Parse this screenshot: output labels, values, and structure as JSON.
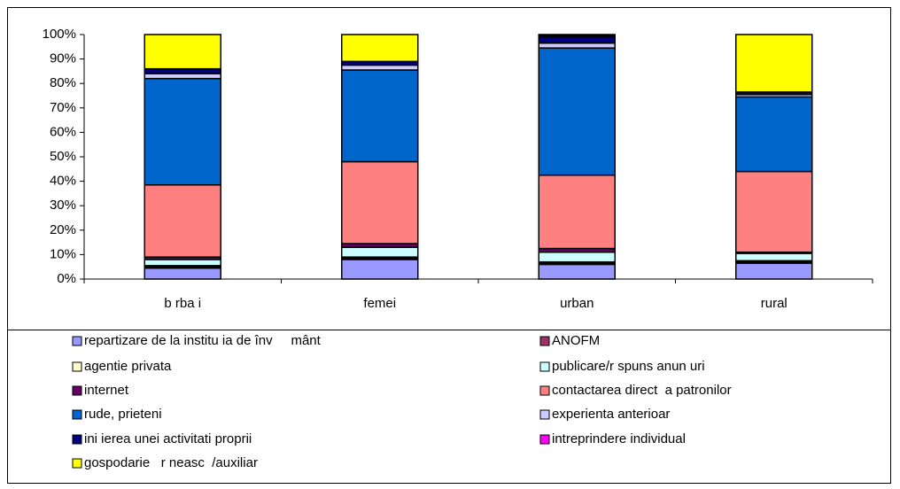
{
  "chart_data": {
    "type": "stacked_bar",
    "categories": [
      "b rba i",
      "femei",
      "urban",
      "rural"
    ],
    "ylim": [
      0,
      100
    ],
    "yticks": [
      {
        "value": 0,
        "label": "0%"
      },
      {
        "value": 10,
        "label": "10%"
      },
      {
        "value": 20,
        "label": "20%"
      },
      {
        "value": 30,
        "label": "30%"
      },
      {
        "value": 40,
        "label": "40%"
      },
      {
        "value": 50,
        "label": "50%"
      },
      {
        "value": 60,
        "label": "60%"
      },
      {
        "value": 70,
        "label": "70%"
      },
      {
        "value": 80,
        "label": "80%"
      },
      {
        "value": 90,
        "label": "90%"
      },
      {
        "value": 100,
        "label": "100%"
      }
    ],
    "series": [
      {
        "name": "repartizare de la institu ia de înv     mânt",
        "color": "#9999ff",
        "values": [
          4.5,
          8,
          6,
          6.5
        ]
      },
      {
        "name": "ANOFM",
        "color": "#993366",
        "values": [
          0.5,
          0.5,
          0.5,
          0.5
        ]
      },
      {
        "name": "agentie privata",
        "color": "#ffffcc",
        "values": [
          0.5,
          0.5,
          0.5,
          0.5
        ]
      },
      {
        "name": "publicare/r spuns anun uri",
        "color": "#ccffff",
        "values": [
          2.5,
          4,
          4,
          3
        ]
      },
      {
        "name": "internet",
        "color": "#660066",
        "values": [
          1,
          1.5,
          1.5,
          0.5
        ]
      },
      {
        "name": "contactarea direct  a patronilor",
        "color": "#ff8080",
        "values": [
          29.5,
          33.5,
          30,
          33
        ]
      },
      {
        "name": "rude, prieteni",
        "color": "#0066cc",
        "values": [
          43.5,
          37.5,
          52,
          30.5
        ]
      },
      {
        "name": "experienta anterioar",
        "color": "#ccccff",
        "values": [
          2,
          2,
          2,
          1
        ]
      },
      {
        "name": "ini ierea unei activitati proprii",
        "color": "#000080",
        "values": [
          2,
          1.5,
          2.5,
          1
        ]
      },
      {
        "name": "intreprindere individual",
        "color": "#ff00ff",
        "values": [
          0,
          0,
          0.5,
          0
        ]
      },
      {
        "name": "gospodarie   r neasc  /auxiliar",
        "color": "#ffff00",
        "values": [
          14,
          11,
          0.5,
          23.5
        ]
      }
    ]
  }
}
